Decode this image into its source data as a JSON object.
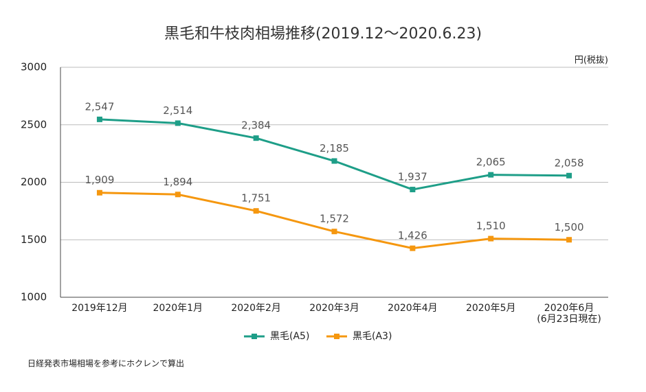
{
  "chart_data": {
    "type": "line",
    "title": "黒毛和牛枝肉相場推移(2019.12〜2020.6.23)",
    "unit_label": "円(税抜)",
    "categories": [
      "2019年12月",
      "2020年1月",
      "2020年2月",
      "2020年3月",
      "2020年4月",
      "2020年5月",
      "2020年6月\n(6月23日現在)"
    ],
    "series": [
      {
        "name": "黒毛(A5)",
        "color": "#1e9e88",
        "values": [
          2547,
          2514,
          2384,
          2185,
          1937,
          2065,
          2058
        ],
        "value_labels": [
          "2,547",
          "2,514",
          "2,384",
          "2,185",
          "1,937",
          "2,065",
          "2,058"
        ]
      },
      {
        "name": "黒毛(A3)",
        "color": "#f5970f",
        "values": [
          1909,
          1894,
          1751,
          1572,
          1426,
          1510,
          1500
        ],
        "value_labels": [
          "1,909",
          "1,894",
          "1,751",
          "1,572",
          "1,426",
          "1,510",
          "1,500"
        ]
      }
    ],
    "ylim": [
      1000,
      3000
    ],
    "yticks": [
      1000,
      1500,
      2000,
      2500,
      3000
    ],
    "grid": true,
    "legend": "bottom",
    "note": "日経発表市場相場を参考にホクレンで算出"
  }
}
